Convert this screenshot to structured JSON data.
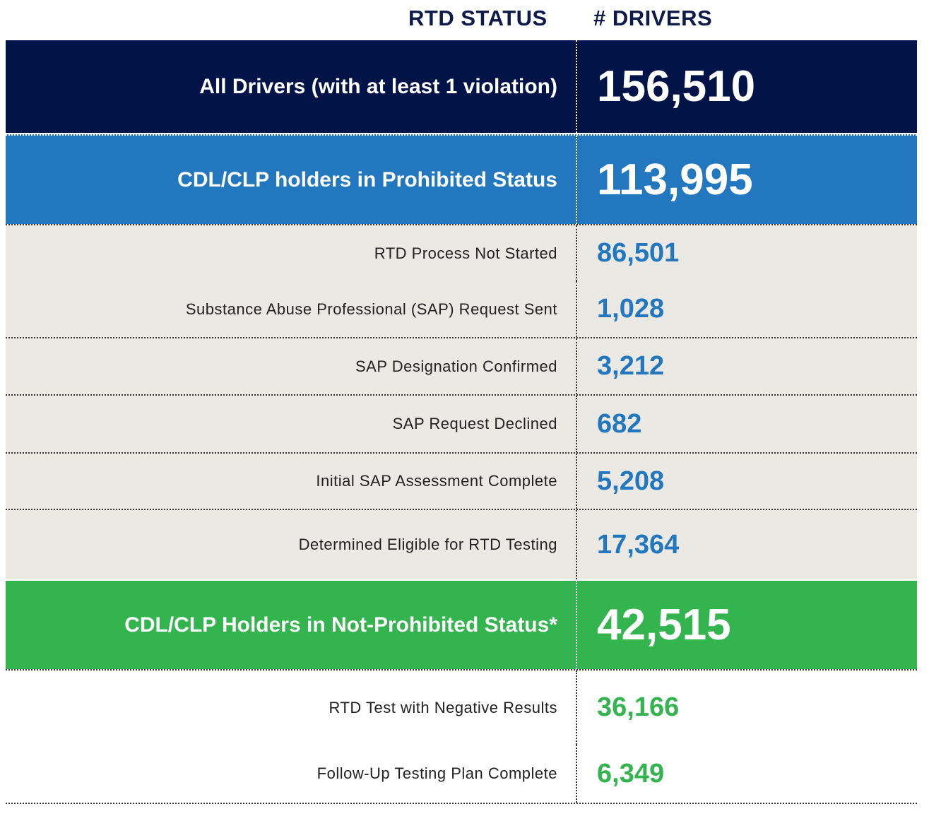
{
  "header": {
    "status_label": "RTD STATUS",
    "drivers_label": "# DRIVERS"
  },
  "rows": [
    {
      "label": "All Drivers (with at least 1 violation)",
      "value": "156,510"
    },
    {
      "label": "CDL/CLP holders  in Prohibited Status",
      "value": "113,995"
    },
    {
      "label": "RTD Process Not Started",
      "value": "86,501"
    },
    {
      "label": "Substance Abuse Professional (SAP) Request Sent",
      "value": "1,028"
    },
    {
      "label": "SAP Designation Confirmed",
      "value": "3,212"
    },
    {
      "label": "SAP Request Declined",
      "value": "682"
    },
    {
      "label": "Initial SAP Assessment Complete",
      "value": "5,208"
    },
    {
      "label": "Determined Eligible for RTD Testing",
      "value": "17,364"
    },
    {
      "label": "CDL/CLP Holders in Not-Prohibited Status*",
      "value": "42,515"
    },
    {
      "label": "RTD Test with Negative Results",
      "value": "36,166"
    },
    {
      "label": "Follow-Up Testing Plan Complete",
      "value": "6,349"
    }
  ],
  "colors": {
    "navy": "#021447",
    "blue": "#2277bf",
    "green": "#34b44f",
    "grey": "#ebe9e3"
  },
  "chart_data": {
    "type": "table",
    "columns": [
      "RTD STATUS",
      "# DRIVERS"
    ],
    "rows": [
      [
        "All Drivers (with at least 1 violation)",
        156510
      ],
      [
        "CDL/CLP holders in Prohibited Status",
        113995
      ],
      [
        "RTD Process Not Started",
        86501
      ],
      [
        "Substance Abuse Professional (SAP) Request Sent",
        1028
      ],
      [
        "SAP Designation Confirmed",
        3212
      ],
      [
        "SAP Request Declined",
        682
      ],
      [
        "Initial SAP Assessment Complete",
        5208
      ],
      [
        "Determined Eligible for RTD Testing",
        17364
      ],
      [
        "CDL/CLP Holders in Not-Prohibited Status*",
        42515
      ],
      [
        "RTD Test with Negative Results",
        36166
      ],
      [
        "Follow-Up Testing Plan Complete",
        6349
      ]
    ]
  }
}
